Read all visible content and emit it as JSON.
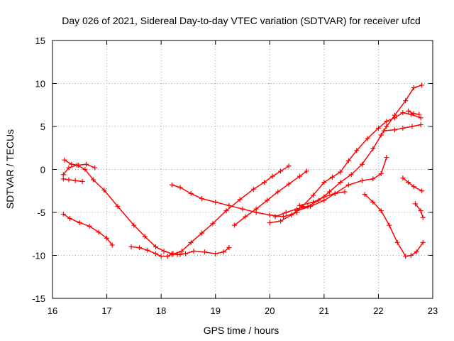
{
  "chart_data": {
    "type": "scatter",
    "title": "Day 026 of 2021, Sidereal Day-to-day VTEC variation (SDTVAR) for receiver ufcd",
    "xlabel": "GPS time / hours",
    "ylabel": "SDTVAR / TECUs",
    "xlim": [
      16,
      23
    ],
    "ylim": [
      -15,
      15
    ],
    "xticks": [
      "16",
      "17",
      "18",
      "19",
      "20",
      "21",
      "22",
      "23"
    ],
    "yticks": [
      "15",
      "10",
      "5",
      "0",
      "-5",
      "-10",
      "-15"
    ],
    "grid": true,
    "marker": "+",
    "color": "#ff0000",
    "series": [
      {
        "name": "track-1",
        "x": [
          16.22,
          16.35,
          16.48,
          16.62,
          16.78
        ],
        "y": [
          1.1,
          0.6,
          0.5,
          0.6,
          0.2
        ]
      },
      {
        "name": "track-2",
        "x": [
          16.2,
          16.3,
          16.45,
          16.6,
          16.75,
          16.95,
          17.2,
          17.5,
          17.7,
          17.9,
          18.05,
          18.2,
          18.35
        ],
        "y": [
          -0.6,
          0.2,
          0.5,
          0.0,
          -1.2,
          -2.4,
          -4.3,
          -6.5,
          -7.8,
          -9.0,
          -9.5,
          -9.8,
          -9.9
        ]
      },
      {
        "name": "track-3",
        "x": [
          16.2,
          16.3,
          16.42,
          16.55
        ],
        "y": [
          -1.1,
          -1.2,
          -1.3,
          -1.4
        ]
      },
      {
        "name": "track-4",
        "x": [
          16.2,
          16.32,
          16.5,
          16.68,
          16.85,
          17.0,
          17.1
        ],
        "y": [
          -5.2,
          -5.7,
          -6.2,
          -6.6,
          -7.3,
          -8.0,
          -8.8
        ]
      },
      {
        "name": "track-5",
        "x": [
          17.45,
          17.6,
          17.75,
          17.9,
          18.0,
          18.12,
          18.22,
          18.3,
          18.45,
          18.6,
          18.8,
          19.0,
          19.15,
          19.25
        ],
        "y": [
          -9.0,
          -9.1,
          -9.4,
          -9.8,
          -10.1,
          -10.1,
          -9.8,
          -9.9,
          -9.8,
          -9.5,
          -9.6,
          -9.8,
          -9.6,
          -9.1
        ]
      },
      {
        "name": "track-6",
        "x": [
          18.2,
          18.38,
          18.55,
          18.75,
          18.95,
          19.2,
          19.45,
          19.7,
          19.9,
          20.05,
          20.2,
          20.35
        ],
        "y": [
          -9.9,
          -9.5,
          -8.5,
          -7.4,
          -6.3,
          -4.8,
          -3.5,
          -2.3,
          -1.5,
          -0.8,
          -0.2,
          0.4
        ]
      },
      {
        "name": "track-7",
        "x": [
          18.2,
          18.35,
          18.55,
          18.75,
          19.0,
          19.25,
          19.5,
          19.75,
          20.0,
          20.25,
          20.5
        ],
        "y": [
          -1.8,
          -2.1,
          -2.8,
          -3.4,
          -3.8,
          -4.2,
          -4.6,
          -5.0,
          -5.3,
          -5.5,
          -5.0
        ]
      },
      {
        "name": "track-8",
        "x": [
          19.35,
          19.55,
          19.75,
          19.95,
          20.15,
          20.35,
          20.55,
          20.68
        ],
        "y": [
          -6.5,
          -5.5,
          -4.6,
          -3.6,
          -2.6,
          -1.7,
          -0.8,
          -0.2
        ]
      },
      {
        "name": "track-9",
        "x": [
          20.0,
          20.2,
          20.4,
          20.6,
          20.8,
          21.0,
          21.15,
          21.3,
          21.45,
          21.6,
          21.8,
          22.0,
          22.15,
          22.3,
          22.45,
          22.6,
          22.78
        ],
        "y": [
          -6.2,
          -6.0,
          -5.3,
          -4.3,
          -3.0,
          -1.5,
          -0.9,
          -0.3,
          1.0,
          2.2,
          3.6,
          4.8,
          5.6,
          6.0,
          6.6,
          6.4,
          6.0
        ]
      },
      {
        "name": "track-10",
        "x": [
          20.1,
          20.3,
          20.5,
          20.7,
          20.9,
          21.1,
          21.3,
          21.5,
          21.7,
          21.9,
          22.05,
          22.15,
          22.3,
          22.5,
          22.65,
          22.8
        ],
        "y": [
          -5.5,
          -5.0,
          -4.6,
          -4.3,
          -3.6,
          -2.6,
          -1.5,
          -0.6,
          0.6,
          2.4,
          4.0,
          5.0,
          6.3,
          8.0,
          9.5,
          9.8
        ]
      },
      {
        "name": "track-11",
        "x": [
          20.5,
          20.75,
          21.0,
          21.2,
          21.45,
          21.7,
          21.9,
          22.05,
          22.15
        ],
        "y": [
          -4.8,
          -4.3,
          -3.6,
          -2.8,
          -1.8,
          -1.3,
          -1.1,
          -0.5,
          1.4
        ]
      },
      {
        "name": "track-12",
        "x": [
          20.55,
          20.8,
          21.0,
          21.2,
          21.38
        ],
        "y": [
          -4.2,
          -3.8,
          -3.2,
          -2.8,
          -2.6
        ]
      },
      {
        "name": "track-13",
        "x": [
          22.1,
          22.3,
          22.45,
          22.62,
          22.78
        ],
        "y": [
          4.5,
          4.6,
          4.8,
          5.0,
          5.2
        ]
      },
      {
        "name": "track-14",
        "x": [
          22.45,
          22.55,
          22.65,
          22.8
        ],
        "y": [
          -1.0,
          -1.5,
          -2.0,
          -2.5
        ]
      },
      {
        "name": "track-15",
        "x": [
          22.55,
          22.65,
          22.75
        ],
        "y": [
          6.8,
          6.5,
          6.4
        ]
      },
      {
        "name": "track-16",
        "x": [
          22.68,
          22.78,
          22.82
        ],
        "y": [
          -4.0,
          -4.8,
          -5.6
        ]
      },
      {
        "name": "track-17",
        "x": [
          21.75,
          21.9,
          22.05,
          22.2,
          22.35,
          22.5,
          22.6,
          22.7,
          22.82
        ],
        "y": [
          -2.9,
          -3.8,
          -4.8,
          -6.5,
          -8.5,
          -10.1,
          -10.0,
          -9.6,
          -8.5
        ]
      }
    ]
  }
}
